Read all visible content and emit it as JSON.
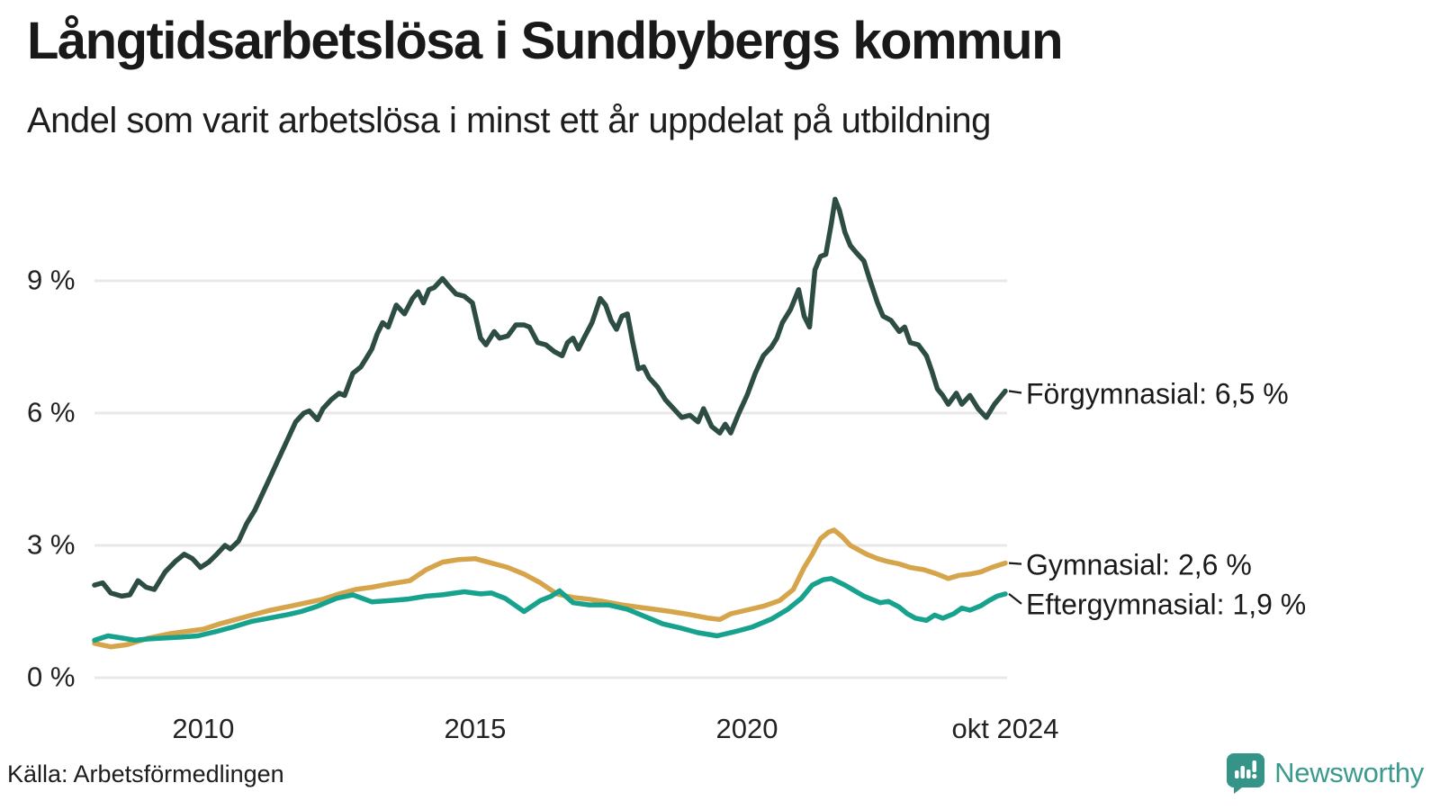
{
  "header": {
    "title": "Långtidsarbetslösa i Sundbybergs kommun",
    "subtitle": "Andel som varit arbetslösa i minst ett år uppdelat på utbildning"
  },
  "footer": {
    "source": "Källa: Arbetsförmedlingen",
    "brand": "Newsworthy",
    "brand_color": "#3b9a8d"
  },
  "colors": {
    "grid": "#e8e8e8",
    "text": "#1a1a1a",
    "connector": "#1a1a1a"
  },
  "chart_data": {
    "type": "line",
    "title": "Långtidsarbetslösa i Sundbybergs kommun",
    "subtitle": "Andel som varit arbetslösa i minst ett år uppdelat på utbildning",
    "xlabel": "",
    "ylabel": "",
    "xlim": [
      2008.0,
      2024.75
    ],
    "ylim": [
      0,
      11
    ],
    "grid": true,
    "legend_position": "right-of-line-ends",
    "x_ticks": [
      {
        "label": "2010",
        "t": 2010
      },
      {
        "label": "2015",
        "t": 2015
      },
      {
        "label": "2020",
        "t": 2020
      },
      {
        "label": "okt 2024",
        "t": 2024.75
      }
    ],
    "y_ticks": [
      {
        "label": "9 %",
        "v": 9
      },
      {
        "label": "6 %",
        "v": 6
      },
      {
        "label": "3 %",
        "v": 3
      },
      {
        "label": "0 %",
        "v": 0
      }
    ],
    "series": [
      {
        "name": "Förgymnasial",
        "label": "Förgymnasial: 6,5 %",
        "last_value": "6,5 %",
        "color": "#2d4c44",
        "points": [
          [
            2008.0,
            2.1
          ],
          [
            2008.15,
            2.15
          ],
          [
            2008.3,
            1.92
          ],
          [
            2008.5,
            1.85
          ],
          [
            2008.65,
            1.88
          ],
          [
            2008.8,
            2.2
          ],
          [
            2008.95,
            2.05
          ],
          [
            2009.1,
            2.0
          ],
          [
            2009.3,
            2.4
          ],
          [
            2009.5,
            2.65
          ],
          [
            2009.65,
            2.8
          ],
          [
            2009.8,
            2.7
          ],
          [
            2009.95,
            2.5
          ],
          [
            2010.1,
            2.62
          ],
          [
            2010.25,
            2.8
          ],
          [
            2010.4,
            3.0
          ],
          [
            2010.5,
            2.92
          ],
          [
            2010.65,
            3.1
          ],
          [
            2010.8,
            3.5
          ],
          [
            2010.95,
            3.8
          ],
          [
            2011.1,
            4.2
          ],
          [
            2011.25,
            4.6
          ],
          [
            2011.4,
            5.0
          ],
          [
            2011.55,
            5.4
          ],
          [
            2011.7,
            5.8
          ],
          [
            2011.85,
            6.0
          ],
          [
            2011.95,
            6.05
          ],
          [
            2012.1,
            5.85
          ],
          [
            2012.2,
            6.1
          ],
          [
            2012.35,
            6.3
          ],
          [
            2012.5,
            6.45
          ],
          [
            2012.6,
            6.4
          ],
          [
            2012.75,
            6.9
          ],
          [
            2012.9,
            7.05
          ],
          [
            2013.0,
            7.25
          ],
          [
            2013.1,
            7.45
          ],
          [
            2013.2,
            7.8
          ],
          [
            2013.3,
            8.05
          ],
          [
            2013.4,
            7.95
          ],
          [
            2013.55,
            8.45
          ],
          [
            2013.7,
            8.25
          ],
          [
            2013.85,
            8.6
          ],
          [
            2013.95,
            8.75
          ],
          [
            2014.05,
            8.5
          ],
          [
            2014.15,
            8.8
          ],
          [
            2014.25,
            8.85
          ],
          [
            2014.4,
            9.05
          ],
          [
            2014.5,
            8.9
          ],
          [
            2014.65,
            8.7
          ],
          [
            2014.8,
            8.65
          ],
          [
            2014.95,
            8.5
          ],
          [
            2015.1,
            7.7
          ],
          [
            2015.2,
            7.55
          ],
          [
            2015.35,
            7.85
          ],
          [
            2015.45,
            7.7
          ],
          [
            2015.6,
            7.75
          ],
          [
            2015.75,
            8.0
          ],
          [
            2015.9,
            8.0
          ],
          [
            2016.0,
            7.95
          ],
          [
            2016.15,
            7.6
          ],
          [
            2016.3,
            7.55
          ],
          [
            2016.45,
            7.4
          ],
          [
            2016.6,
            7.3
          ],
          [
            2016.7,
            7.6
          ],
          [
            2016.8,
            7.7
          ],
          [
            2016.9,
            7.45
          ],
          [
            2017.0,
            7.7
          ],
          [
            2017.15,
            8.05
          ],
          [
            2017.3,
            8.6
          ],
          [
            2017.4,
            8.45
          ],
          [
            2017.5,
            8.1
          ],
          [
            2017.6,
            7.9
          ],
          [
            2017.7,
            8.2
          ],
          [
            2017.8,
            8.25
          ],
          [
            2017.9,
            7.6
          ],
          [
            2018.0,
            7.0
          ],
          [
            2018.1,
            7.05
          ],
          [
            2018.2,
            6.8
          ],
          [
            2018.35,
            6.6
          ],
          [
            2018.5,
            6.3
          ],
          [
            2018.65,
            6.1
          ],
          [
            2018.8,
            5.9
          ],
          [
            2018.95,
            5.95
          ],
          [
            2019.1,
            5.8
          ],
          [
            2019.2,
            6.1
          ],
          [
            2019.35,
            5.7
          ],
          [
            2019.5,
            5.55
          ],
          [
            2019.6,
            5.75
          ],
          [
            2019.7,
            5.55
          ],
          [
            2019.85,
            6.0
          ],
          [
            2020.0,
            6.4
          ],
          [
            2020.15,
            6.9
          ],
          [
            2020.3,
            7.3
          ],
          [
            2020.45,
            7.5
          ],
          [
            2020.55,
            7.7
          ],
          [
            2020.65,
            8.05
          ],
          [
            2020.8,
            8.35
          ],
          [
            2020.95,
            8.8
          ],
          [
            2021.05,
            8.2
          ],
          [
            2021.15,
            7.95
          ],
          [
            2021.25,
            9.25
          ],
          [
            2021.35,
            9.55
          ],
          [
            2021.45,
            9.6
          ],
          [
            2021.55,
            10.3
          ],
          [
            2021.62,
            10.85
          ],
          [
            2021.7,
            10.6
          ],
          [
            2021.8,
            10.1
          ],
          [
            2021.9,
            9.8
          ],
          [
            2022.0,
            9.65
          ],
          [
            2022.15,
            9.45
          ],
          [
            2022.25,
            9.05
          ],
          [
            2022.4,
            8.5
          ],
          [
            2022.5,
            8.2
          ],
          [
            2022.65,
            8.1
          ],
          [
            2022.8,
            7.85
          ],
          [
            2022.9,
            7.95
          ],
          [
            2023.0,
            7.6
          ],
          [
            2023.15,
            7.55
          ],
          [
            2023.3,
            7.3
          ],
          [
            2023.4,
            6.95
          ],
          [
            2023.5,
            6.55
          ],
          [
            2023.6,
            6.4
          ],
          [
            2023.7,
            6.2
          ],
          [
            2023.85,
            6.45
          ],
          [
            2023.95,
            6.2
          ],
          [
            2024.1,
            6.4
          ],
          [
            2024.25,
            6.1
          ],
          [
            2024.4,
            5.9
          ],
          [
            2024.55,
            6.2
          ],
          [
            2024.65,
            6.35
          ],
          [
            2024.75,
            6.5
          ]
        ]
      },
      {
        "name": "Gymnasial",
        "label": "Gymnasial: 2,6 %",
        "last_value": "2,6 %",
        "color": "#d6a54b",
        "points": [
          [
            2008.0,
            0.78
          ],
          [
            2008.3,
            0.7
          ],
          [
            2008.6,
            0.75
          ],
          [
            2009.0,
            0.9
          ],
          [
            2009.4,
            1.0
          ],
          [
            2009.7,
            1.05
          ],
          [
            2010.0,
            1.1
          ],
          [
            2010.3,
            1.22
          ],
          [
            2010.6,
            1.32
          ],
          [
            2010.9,
            1.42
          ],
          [
            2011.2,
            1.52
          ],
          [
            2011.6,
            1.62
          ],
          [
            2011.9,
            1.7
          ],
          [
            2012.2,
            1.78
          ],
          [
            2012.5,
            1.9
          ],
          [
            2012.8,
            2.0
          ],
          [
            2013.1,
            2.05
          ],
          [
            2013.4,
            2.12
          ],
          [
            2013.8,
            2.2
          ],
          [
            2014.1,
            2.45
          ],
          [
            2014.4,
            2.62
          ],
          [
            2014.7,
            2.68
          ],
          [
            2015.0,
            2.7
          ],
          [
            2015.3,
            2.6
          ],
          [
            2015.6,
            2.5
          ],
          [
            2015.9,
            2.35
          ],
          [
            2016.2,
            2.15
          ],
          [
            2016.5,
            1.9
          ],
          [
            2016.8,
            1.82
          ],
          [
            2017.1,
            1.78
          ],
          [
            2017.4,
            1.72
          ],
          [
            2017.7,
            1.65
          ],
          [
            2018.0,
            1.6
          ],
          [
            2018.3,
            1.55
          ],
          [
            2018.6,
            1.5
          ],
          [
            2018.95,
            1.43
          ],
          [
            2019.3,
            1.35
          ],
          [
            2019.5,
            1.32
          ],
          [
            2019.7,
            1.45
          ],
          [
            2019.95,
            1.52
          ],
          [
            2020.3,
            1.62
          ],
          [
            2020.6,
            1.75
          ],
          [
            2020.85,
            2.0
          ],
          [
            2021.05,
            2.5
          ],
          [
            2021.2,
            2.8
          ],
          [
            2021.35,
            3.15
          ],
          [
            2021.5,
            3.3
          ],
          [
            2021.6,
            3.35
          ],
          [
            2021.75,
            3.2
          ],
          [
            2021.9,
            3.0
          ],
          [
            2022.05,
            2.9
          ],
          [
            2022.2,
            2.8
          ],
          [
            2022.4,
            2.7
          ],
          [
            2022.6,
            2.63
          ],
          [
            2022.8,
            2.58
          ],
          [
            2023.0,
            2.5
          ],
          [
            2023.25,
            2.45
          ],
          [
            2023.5,
            2.35
          ],
          [
            2023.7,
            2.25
          ],
          [
            2023.9,
            2.32
          ],
          [
            2024.1,
            2.35
          ],
          [
            2024.3,
            2.4
          ],
          [
            2024.5,
            2.5
          ],
          [
            2024.75,
            2.6
          ]
        ]
      },
      {
        "name": "Eftergymnasial",
        "label": "Eftergymnasial: 1,9 %",
        "last_value": "1,9 %",
        "color": "#17a28e",
        "points": [
          [
            2008.0,
            0.85
          ],
          [
            2008.25,
            0.95
          ],
          [
            2008.5,
            0.9
          ],
          [
            2008.75,
            0.85
          ],
          [
            2009.0,
            0.88
          ],
          [
            2009.3,
            0.9
          ],
          [
            2009.6,
            0.92
          ],
          [
            2009.9,
            0.95
          ],
          [
            2010.25,
            1.05
          ],
          [
            2010.55,
            1.15
          ],
          [
            2010.9,
            1.28
          ],
          [
            2011.2,
            1.35
          ],
          [
            2011.55,
            1.43
          ],
          [
            2011.8,
            1.5
          ],
          [
            2012.1,
            1.62
          ],
          [
            2012.45,
            1.8
          ],
          [
            2012.75,
            1.88
          ],
          [
            2013.1,
            1.72
          ],
          [
            2013.45,
            1.75
          ],
          [
            2013.75,
            1.78
          ],
          [
            2014.1,
            1.85
          ],
          [
            2014.4,
            1.88
          ],
          [
            2014.8,
            1.95
          ],
          [
            2015.1,
            1.9
          ],
          [
            2015.3,
            1.92
          ],
          [
            2015.55,
            1.8
          ],
          [
            2015.9,
            1.5
          ],
          [
            2016.2,
            1.75
          ],
          [
            2016.4,
            1.85
          ],
          [
            2016.55,
            1.97
          ],
          [
            2016.8,
            1.7
          ],
          [
            2017.1,
            1.65
          ],
          [
            2017.45,
            1.65
          ],
          [
            2017.8,
            1.55
          ],
          [
            2018.1,
            1.4
          ],
          [
            2018.45,
            1.22
          ],
          [
            2018.8,
            1.12
          ],
          [
            2019.1,
            1.02
          ],
          [
            2019.45,
            0.95
          ],
          [
            2019.8,
            1.05
          ],
          [
            2020.1,
            1.15
          ],
          [
            2020.45,
            1.33
          ],
          [
            2020.75,
            1.55
          ],
          [
            2021.0,
            1.8
          ],
          [
            2021.2,
            2.1
          ],
          [
            2021.4,
            2.22
          ],
          [
            2021.55,
            2.25
          ],
          [
            2021.8,
            2.1
          ],
          [
            2022.15,
            1.85
          ],
          [
            2022.45,
            1.7
          ],
          [
            2022.6,
            1.73
          ],
          [
            2022.8,
            1.6
          ],
          [
            2022.95,
            1.45
          ],
          [
            2023.1,
            1.35
          ],
          [
            2023.3,
            1.3
          ],
          [
            2023.45,
            1.42
          ],
          [
            2023.6,
            1.35
          ],
          [
            2023.8,
            1.45
          ],
          [
            2023.95,
            1.58
          ],
          [
            2024.1,
            1.53
          ],
          [
            2024.3,
            1.63
          ],
          [
            2024.45,
            1.75
          ],
          [
            2024.6,
            1.85
          ],
          [
            2024.75,
            1.9
          ]
        ]
      }
    ]
  }
}
